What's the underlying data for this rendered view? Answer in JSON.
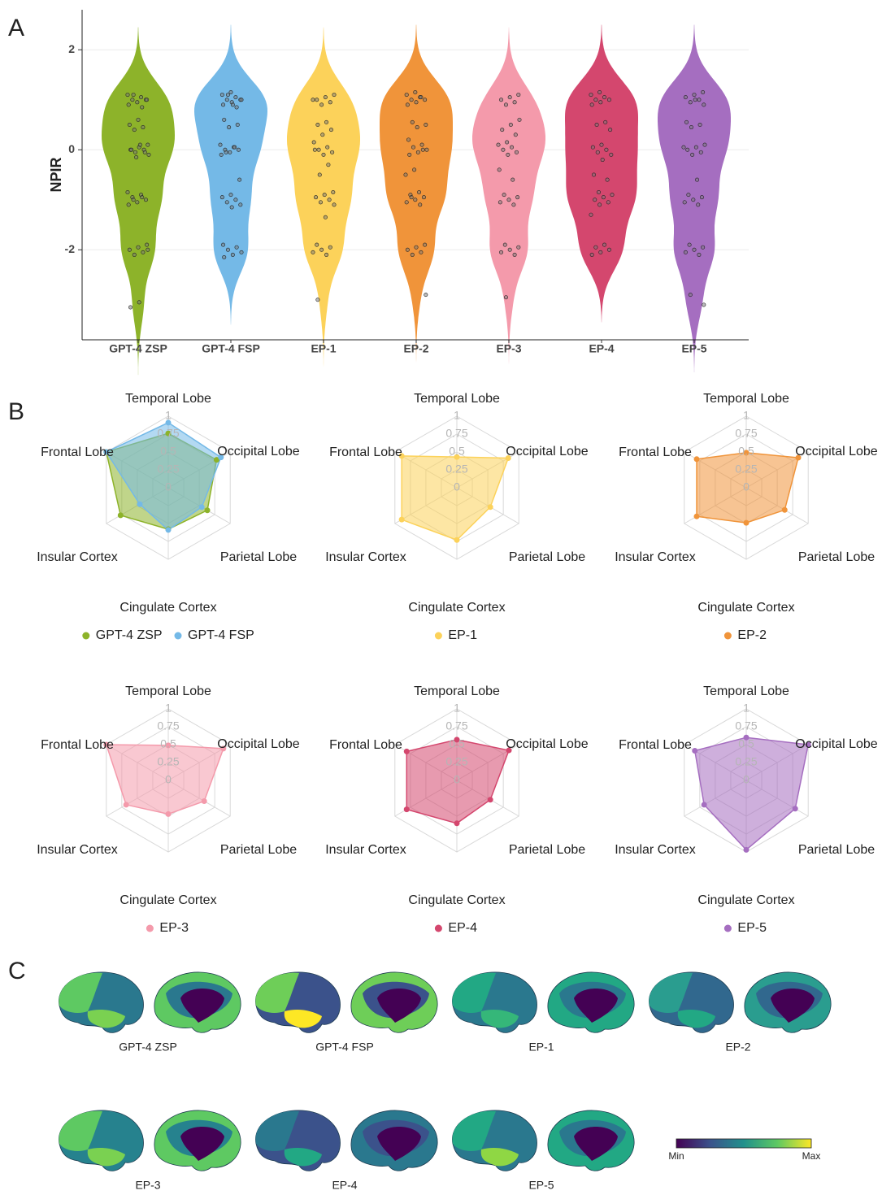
{
  "chart_data": [
    {
      "type": "violin",
      "panel_label": "A",
      "ylabel": "NPIR",
      "categories": [
        "GPT-4 ZSP",
        "GPT-4 FSP",
        "EP-1",
        "EP-2",
        "EP-3",
        "EP-4",
        "EP-5"
      ],
      "colors": [
        "#8db32a",
        "#74b9e7",
        "#fcd25a",
        "#f0943a",
        "#f49aab",
        "#d4476e",
        "#a56ec0"
      ],
      "values": [
        [
          1.1,
          1.05,
          1.0,
          1.0,
          0.95,
          0.9,
          0.85,
          1.1,
          1.0,
          0.6,
          0.5,
          0.45,
          0.4,
          0.1,
          0.05,
          0.0,
          0.0,
          -0.05,
          -0.1,
          0.1,
          0.0,
          -0.05,
          -0.15,
          -0.85,
          -0.9,
          -0.95,
          -1.0,
          -1.05,
          -1.1,
          -0.95,
          -1.0,
          -1.9,
          -1.95,
          -2.0,
          -2.05,
          -2.1,
          -2.0,
          -3.05,
          -3.15
        ],
        [
          1.15,
          1.1,
          1.05,
          1.0,
          1.0,
          0.95,
          0.9,
          0.85,
          1.1,
          1.0,
          0.9,
          0.6,
          0.5,
          0.45,
          0.1,
          0.05,
          0.0,
          0.0,
          -0.05,
          -0.1,
          0.05,
          -0.05,
          -0.6,
          -0.9,
          -0.95,
          -1.0,
          -1.05,
          -1.1,
          -1.15,
          -1.9,
          -1.95,
          -2.0,
          -2.05,
          -2.1,
          -2.15
        ],
        [
          1.1,
          1.05,
          1.0,
          0.95,
          0.9,
          1.0,
          0.55,
          0.5,
          0.4,
          0.3,
          0.15,
          0.05,
          0.0,
          -0.05,
          -0.1,
          0.0,
          -0.3,
          -0.5,
          -0.85,
          -0.9,
          -0.95,
          -1.0,
          -1.05,
          -1.1,
          -1.35,
          -1.9,
          -1.95,
          -2.0,
          -2.05,
          -2.1,
          -3.0
        ],
        [
          1.15,
          1.1,
          1.05,
          1.0,
          1.0,
          0.95,
          0.9,
          1.05,
          0.55,
          0.5,
          0.45,
          0.2,
          0.1,
          0.05,
          0.0,
          -0.05,
          -0.1,
          0.0,
          -0.4,
          -0.5,
          -0.85,
          -0.9,
          -0.95,
          -1.0,
          -1.05,
          -1.1,
          -0.95,
          -1.9,
          -1.95,
          -2.0,
          -2.05,
          -2.1,
          -2.9
        ],
        [
          1.1,
          1.05,
          1.0,
          0.95,
          0.9,
          0.6,
          0.5,
          0.4,
          0.3,
          0.15,
          0.1,
          0.05,
          0.0,
          -0.05,
          -0.1,
          -0.4,
          -0.6,
          -0.9,
          -0.95,
          -1.0,
          -1.05,
          -1.1,
          -1.9,
          -1.95,
          -2.0,
          -2.05,
          -2.1,
          -2.95
        ],
        [
          1.15,
          1.1,
          1.05,
          1.0,
          1.0,
          0.95,
          0.9,
          0.55,
          0.5,
          0.4,
          0.1,
          0.05,
          0.0,
          -0.05,
          -0.1,
          -0.2,
          -0.5,
          -0.6,
          -0.85,
          -0.9,
          -0.95,
          -1.0,
          -1.05,
          -1.1,
          -1.3,
          -1.9,
          -1.95,
          -2.0,
          -2.05,
          -2.1
        ],
        [
          1.15,
          1.1,
          1.05,
          1.0,
          0.95,
          0.9,
          1.0,
          0.55,
          0.5,
          0.45,
          0.1,
          0.05,
          0.0,
          -0.05,
          -0.1,
          0.05,
          -0.6,
          -0.9,
          -0.95,
          -1.0,
          -1.05,
          -1.1,
          -1.9,
          -1.95,
          -2.0,
          -2.05,
          -2.1,
          -2.9,
          -3.1
        ]
      ],
      "ylim": [
        -3.8,
        2.8
      ],
      "yticks": [
        -2,
        0,
        2
      ],
      "grid": true
    },
    {
      "type": "radar",
      "panel_label": "B",
      "axes": [
        "Temporal Lobe",
        "Occipital Lobe",
        "Parietal Lobe",
        "Cingulate Cortex",
        "Insular Cortex",
        "Frontal Lobe"
      ],
      "rlim": [
        0,
        1
      ],
      "rticks": [
        0,
        0.25,
        0.5,
        0.75,
        1
      ],
      "series": [
        {
          "name": "GPT-4 ZSP",
          "color": "#8db32a",
          "values": [
            0.76,
            0.78,
            0.63,
            0.58,
            0.77,
            1.0
          ]
        },
        {
          "name": "GPT-4 FSP",
          "color": "#74b9e7",
          "values": [
            0.91,
            0.85,
            0.54,
            0.59,
            0.46,
            1.0
          ]
        }
      ]
    },
    {
      "type": "radar",
      "axes": [
        "Temporal Lobe",
        "Occipital Lobe",
        "Parietal Lobe",
        "Cingulate Cortex",
        "Insular Cortex",
        "Frontal Lobe"
      ],
      "rlim": [
        0,
        1
      ],
      "rticks": [
        0,
        0.25,
        0.5,
        0.75,
        1
      ],
      "series": [
        {
          "name": "EP-1",
          "color": "#fcd25a",
          "values": [
            0.43,
            0.83,
            0.54,
            0.73,
            0.89,
            0.89
          ]
        }
      ]
    },
    {
      "type": "radar",
      "axes": [
        "Temporal Lobe",
        "Occipital Lobe",
        "Parietal Lobe",
        "Cingulate Cortex",
        "Insular Cortex",
        "Frontal Lobe"
      ],
      "rlim": [
        0,
        1
      ],
      "rticks": [
        0,
        0.25,
        0.5,
        0.75,
        1
      ],
      "series": [
        {
          "name": "EP-2",
          "color": "#f0943a",
          "values": [
            0.49,
            0.84,
            0.62,
            0.49,
            0.8,
            0.8
          ]
        }
      ]
    },
    {
      "type": "radar",
      "axes": [
        "Temporal Lobe",
        "Occipital Lobe",
        "Parietal Lobe",
        "Cingulate Cortex",
        "Insular Cortex",
        "Frontal Lobe"
      ],
      "rlim": [
        0,
        1
      ],
      "rticks": [
        0,
        0.25,
        0.5,
        0.75,
        1
      ],
      "series": [
        {
          "name": "EP-3",
          "color": "#f49aab",
          "values": [
            0.49,
            0.89,
            0.58,
            0.47,
            0.68,
            1.0
          ]
        }
      ]
    },
    {
      "type": "radar",
      "axes": [
        "Temporal Lobe",
        "Occipital Lobe",
        "Parietal Lobe",
        "Cingulate Cortex",
        "Insular Cortex",
        "Frontal Lobe"
      ],
      "rlim": [
        0,
        1
      ],
      "rticks": [
        0,
        0.25,
        0.5,
        0.75,
        1
      ],
      "series": [
        {
          "name": "EP-4",
          "color": "#d4476e",
          "values": [
            0.57,
            0.84,
            0.54,
            0.6,
            0.81,
            0.81
          ]
        }
      ]
    },
    {
      "type": "radar",
      "axes": [
        "Temporal Lobe",
        "Occipital Lobe",
        "Parietal Lobe",
        "Cingulate Cortex",
        "Insular Cortex",
        "Frontal Lobe"
      ],
      "rlim": [
        0,
        1
      ],
      "rticks": [
        0,
        0.25,
        0.5,
        0.75,
        1
      ],
      "series": [
        {
          "name": "EP-5",
          "color": "#a56ec0",
          "values": [
            0.6,
            1.0,
            0.79,
            0.97,
            0.68,
            0.83
          ]
        }
      ]
    }
  ],
  "brain_maps": {
    "panel_label": "C",
    "labels": [
      "GPT-4 ZSP",
      "GPT-4 FSP",
      "EP-1",
      "EP-2",
      "EP-3",
      "EP-4",
      "EP-5"
    ],
    "colorbar": {
      "min_label": "Min",
      "max_label": "Max"
    }
  }
}
